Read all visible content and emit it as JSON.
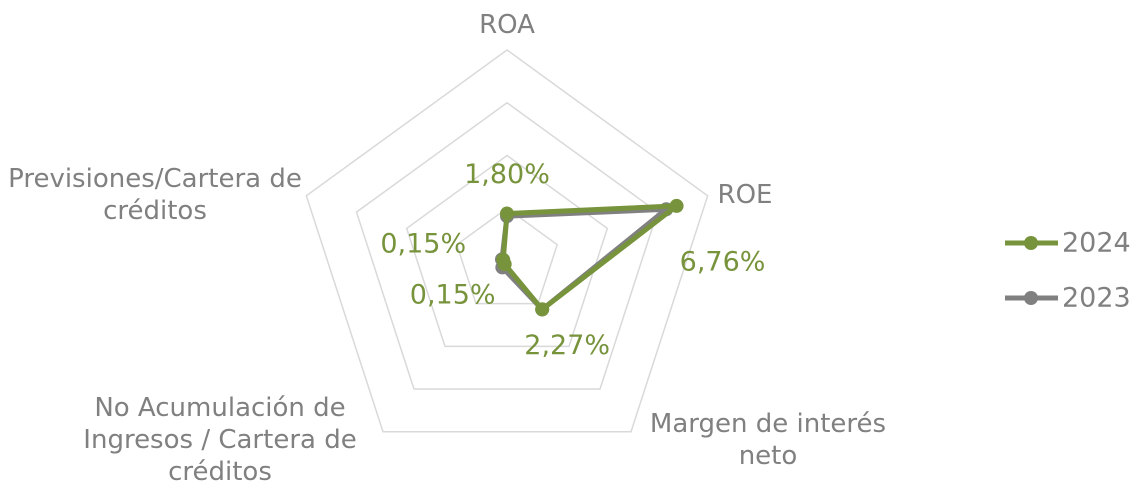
{
  "chart_data": {
    "type": "radar",
    "categories": [
      "ROA",
      "ROE",
      "Margen de interés neto",
      "No Acumulación de Ingresos / Cartera de créditos",
      "Previsiones/Cartera de créditos"
    ],
    "series": [
      {
        "name": "2024",
        "color": "#77933c",
        "values": [
          1.8,
          6.76,
          2.27,
          0.15,
          0.15
        ],
        "value_labels": [
          "1,80%",
          "6,76%",
          "2,27%",
          "0,15%",
          "0,15%"
        ]
      },
      {
        "name": "2023",
        "color": "#808080",
        "values": [
          1.7,
          6.35,
          2.27,
          0.3,
          0.2
        ]
      }
    ],
    "ylim": [
      0,
      8
    ],
    "yticks": [
      0,
      2,
      4,
      6,
      8
    ],
    "grid": true,
    "legend": "right"
  }
}
